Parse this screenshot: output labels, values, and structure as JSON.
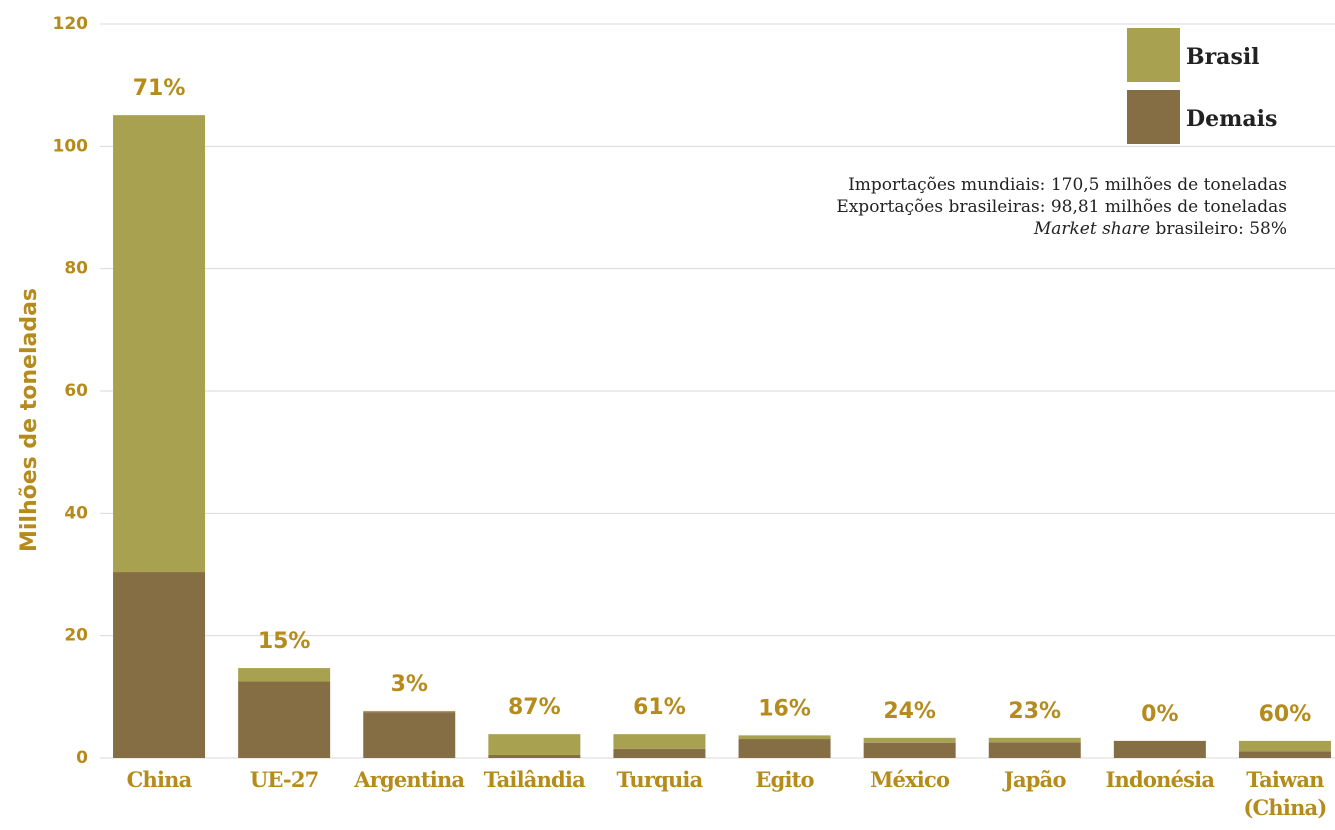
{
  "chart_data": {
    "type": "bar",
    "stacked": true,
    "y_label": "Milhões de toneladas",
    "categories": [
      "China",
      "UE-27",
      "Argentina",
      "Tailândia",
      "Turquia",
      "Egito",
      "México",
      "Japão",
      "Indonésia",
      "Taiwan (China)"
    ],
    "series": [
      {
        "name": "Demais",
        "color": "#856d44",
        "values": [
          30.4,
          12.5,
          7.5,
          0.5,
          1.5,
          3.1,
          2.5,
          2.55,
          2.8,
          1.1
        ]
      },
      {
        "name": "Brasil",
        "color": "#a8a150",
        "values": [
          74.7,
          2.2,
          0.2,
          3.4,
          2.4,
          0.6,
          0.8,
          0.75,
          0,
          1.7
        ]
      }
    ],
    "share_labels": [
      "71%",
      "15%",
      "3%",
      "87%",
      "61%",
      "16%",
      "24%",
      "23%",
      "0%",
      "60%"
    ],
    "notes": [
      "Importações mundiais: 170,5 milhões de toneladas",
      "Exportações brasileiras: 98,81 milhões de toneladas"
    ],
    "note_market_share": {
      "italic": "Market share",
      "rest": " brasileiro: 58%"
    },
    "ylim": [
      0,
      120
    ],
    "yticks": [
      0,
      20,
      40,
      60,
      80,
      100,
      120
    ],
    "grid": true,
    "legend": "top-right"
  }
}
